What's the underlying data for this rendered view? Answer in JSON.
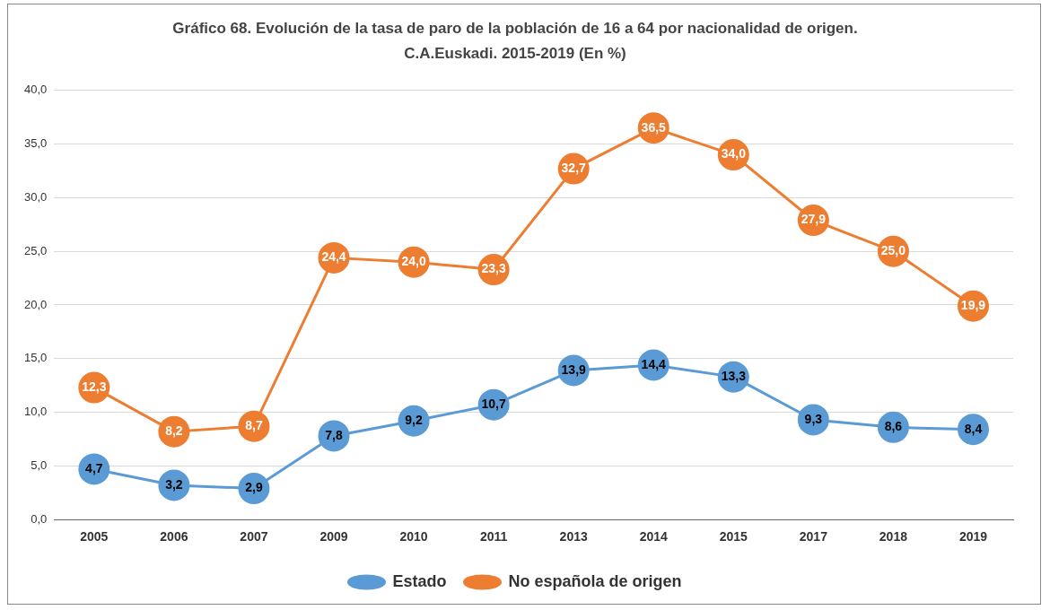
{
  "chart_data": {
    "type": "line",
    "title": "Gráfico 68. Evolución de la tasa de paro de la población de 16 a 64 por nacionalidad de origen.",
    "subtitle": "C.A.Euskadi. 2015-2019 (En %)",
    "categories": [
      "2005",
      "2006",
      "2007",
      "2009",
      "2010",
      "2011",
      "2013",
      "2014",
      "2015",
      "2017",
      "2018",
      "2019"
    ],
    "series": [
      {
        "name": "Estado",
        "color": "#5b9bd5",
        "values": [
          4.7,
          3.2,
          2.9,
          7.8,
          9.2,
          10.7,
          13.9,
          14.4,
          13.3,
          9.3,
          8.6,
          8.4
        ],
        "value_labels": [
          "4,7",
          "3,2",
          "2,9",
          "7,8",
          "9,2",
          "10,7",
          "13,9",
          "14,4",
          "13,3",
          "9,3",
          "8,6",
          "8,4"
        ]
      },
      {
        "name": "No española de origen",
        "color": "#ed7d31",
        "values": [
          12.3,
          8.2,
          8.7,
          24.4,
          24.0,
          23.3,
          32.7,
          36.5,
          34.0,
          27.9,
          25.0,
          19.9
        ],
        "value_labels": [
          "12,3",
          "8,2",
          "8,7",
          "24,4",
          "24,0",
          "23,3",
          "32,7",
          "36,5",
          "34,0",
          "27,9",
          "25,0",
          "19,9"
        ]
      }
    ],
    "ylim": [
      0,
      40
    ],
    "yticks": [
      {
        "value": 0,
        "label": "0,0"
      },
      {
        "value": 5,
        "label": "5,0"
      },
      {
        "value": 10,
        "label": "10,0"
      },
      {
        "value": 15,
        "label": "15,0"
      },
      {
        "value": 20,
        "label": "20,0"
      },
      {
        "value": 25,
        "label": "25,0"
      },
      {
        "value": 30,
        "label": "30,0"
      },
      {
        "value": 35,
        "label": "35,0"
      },
      {
        "value": 40,
        "label": "40,0"
      }
    ],
    "grid": "y",
    "legend": "bottom",
    "marker": "circle",
    "line_style": "solid"
  }
}
